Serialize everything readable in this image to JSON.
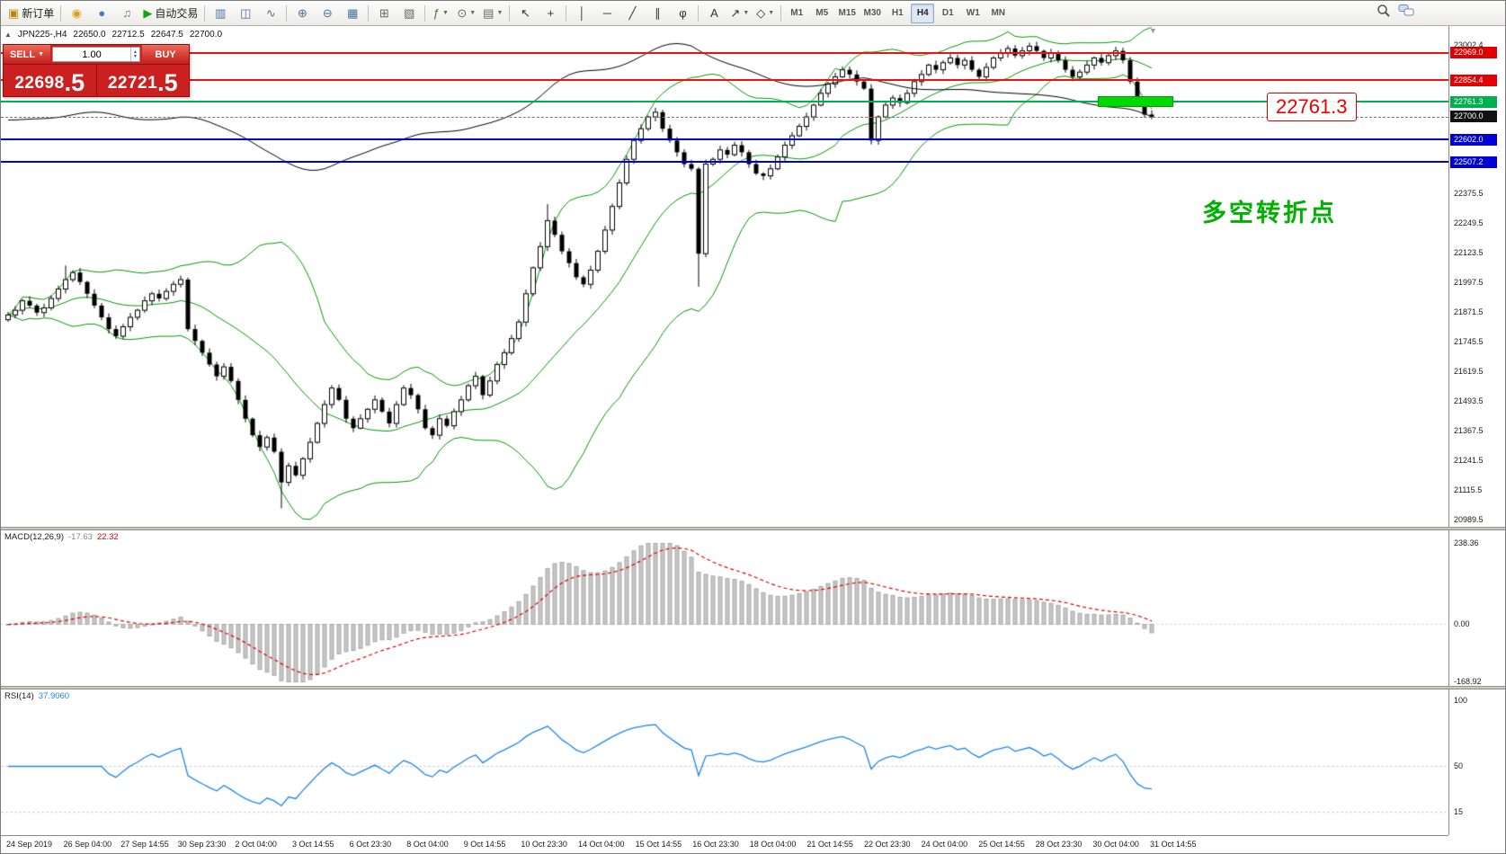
{
  "toolbar": {
    "groups": [
      [
        {
          "name": "new-order-button",
          "glyph": "▣",
          "color": "#b8860b",
          "label": "新订单"
        }
      ],
      [
        {
          "name": "gold-coins-icon",
          "glyph": "◉",
          "color": "#d4a017"
        },
        {
          "name": "profile-icon",
          "glyph": "●",
          "color": "#4a7ebb"
        },
        {
          "name": "signals-icon",
          "glyph": "♫",
          "color": "#777777"
        },
        {
          "name": "auto-trading-button",
          "glyph": "▶",
          "color": "#18a018",
          "label": "自动交易"
        }
      ],
      [
        {
          "name": "bar-chart-icon",
          "glyph": "▥",
          "color": "#4a6e9e"
        },
        {
          "name": "candlestick-icon",
          "glyph": "◫",
          "color": "#4a6e9e"
        },
        {
          "name": "line-chart-icon",
          "glyph": "∿",
          "color": "#4a6e9e"
        }
      ],
      [
        {
          "name": "zoom-in-icon",
          "glyph": "⊕",
          "color": "#4a6e9e"
        },
        {
          "name": "zoom-out-icon",
          "glyph": "⊖",
          "color": "#4a6e9e"
        },
        {
          "name": "grid-icon",
          "glyph": "▦",
          "color": "#4a6e9e"
        }
      ],
      [
        {
          "name": "tile-windows-icon",
          "glyph": "⊞",
          "color": "#666666"
        },
        {
          "name": "profiles-icon",
          "glyph": "▧",
          "color": "#666666"
        }
      ],
      [
        {
          "name": "indicators-icon",
          "glyph": "ƒ",
          "color": "#2e7d32",
          "caret": true
        },
        {
          "name": "periods-icon",
          "glyph": "⊙",
          "color": "#666666",
          "caret": true
        },
        {
          "name": "templates-icon",
          "glyph": "▤",
          "color": "#666666",
          "caret": true
        }
      ],
      [
        {
          "name": "cursor-icon",
          "glyph": "↖",
          "color": "#333333"
        },
        {
          "name": "crosshair-icon",
          "glyph": "+",
          "color": "#333333"
        }
      ],
      [
        {
          "name": "vertical-line-icon",
          "glyph": "│",
          "color": "#333333"
        },
        {
          "name": "horizontal-line-icon",
          "glyph": "─",
          "color": "#333333"
        },
        {
          "name": "trendline-icon",
          "glyph": "╱",
          "color": "#333333"
        },
        {
          "name": "channel-icon",
          "glyph": "∥",
          "color": "#333333"
        },
        {
          "name": "fibonacci-icon",
          "glyph": "φ",
          "color": "#333333"
        }
      ],
      [
        {
          "name": "text-icon",
          "glyph": "A",
          "color": "#333333"
        },
        {
          "name": "arrows-icon",
          "glyph": "↗",
          "color": "#333333",
          "caret": true
        },
        {
          "name": "shapes-icon",
          "glyph": "◇",
          "color": "#333333",
          "caret": true
        }
      ]
    ],
    "timeframes": [
      {
        "label": "M1"
      },
      {
        "label": "M5"
      },
      {
        "label": "M15"
      },
      {
        "label": "M30"
      },
      {
        "label": "H1"
      },
      {
        "label": "H4",
        "active": true
      },
      {
        "label": "D1"
      },
      {
        "label": "W1"
      },
      {
        "label": "MN"
      }
    ]
  },
  "chart": {
    "title": {
      "symbol_period": "JPN225-,H4",
      "open": "22650.0",
      "high": "22712.5",
      "low": "22647.5",
      "close": "22700.0"
    },
    "trade_panel": {
      "sell_label": "SELL",
      "buy_label": "BUY",
      "volume": "1.00",
      "sell_price": "22698",
      "sell_frac": ".5",
      "buy_price": "22721",
      "buy_frac": ".5"
    },
    "hlines": [
      {
        "price": 22969.0,
        "label": "22969.0",
        "color": "#ee1111",
        "box": "#e20000",
        "thickness": 2
      },
      {
        "price": 22854.4,
        "label": "22854.4",
        "color": "#ee1111",
        "box": "#e20000",
        "thickness": 2
      },
      {
        "price": 22761.3,
        "label": "22761.3",
        "color": "#00b050",
        "box": "#00b050",
        "thickness": 2
      },
      {
        "price": 22602.0,
        "label": "22602.0",
        "color": "#0000d8",
        "box": "#0000d8",
        "thickness": 2
      },
      {
        "price": 22507.2,
        "label": "22507.2",
        "color": "#0000d8",
        "box": "#0000d8",
        "thickness": 2
      }
    ],
    "current_price": {
      "price": 22700.0,
      "label": "22700.0",
      "box": "#111111"
    },
    "price_axis_ticks": [
      "23002.4",
      "22375.5",
      "22249.5",
      "22123.5",
      "21997.5",
      "21871.5",
      "21745.5",
      "21619.5",
      "21493.5",
      "21367.5",
      "21241.5",
      "21115.5",
      "20989.5"
    ],
    "annotations": {
      "highlight": {
        "price": 22761.3,
        "color": "#00d800"
      },
      "callout": {
        "text": "22761.3",
        "color": "#ee0000"
      },
      "note": {
        "text": "多空转折点",
        "color": "#00b000"
      }
    }
  },
  "chart_data": {
    "type": "candlestick",
    "symbol": "JPN225-",
    "timeframe": "H4",
    "ylim": [
      20975,
      23030
    ],
    "closes": [
      21860,
      21880,
      21920,
      21900,
      21870,
      21890,
      21930,
      21970,
      22010,
      22040,
      22000,
      21950,
      21900,
      21850,
      21800,
      21770,
      21810,
      21850,
      21880,
      21920,
      21950,
      21930,
      21960,
      21990,
      22010,
      21800,
      21750,
      21700,
      21650,
      21600,
      21640,
      21580,
      21500,
      21420,
      21350,
      21300,
      21340,
      21280,
      21150,
      21220,
      21180,
      21250,
      21320,
      21400,
      21480,
      21550,
      21500,
      21420,
      21380,
      21420,
      21460,
      21500,
      21450,
      21400,
      21480,
      21550,
      21520,
      21460,
      21380,
      21350,
      21420,
      21390,
      21450,
      21500,
      21560,
      21600,
      21520,
      21580,
      21650,
      21700,
      21760,
      21830,
      21950,
      22060,
      22150,
      22260,
      22200,
      22130,
      22080,
      22020,
      21990,
      22050,
      22130,
      22220,
      22320,
      22420,
      22520,
      22600,
      22650,
      22700,
      22720,
      22650,
      22600,
      22550,
      22500,
      22480,
      22120,
      22500,
      22520,
      22560,
      22540,
      22580,
      22550,
      22500,
      22460,
      22450,
      22480,
      22530,
      22580,
      22620,
      22660,
      22700,
      22750,
      22800,
      22840,
      22870,
      22900,
      22880,
      22850,
      22820,
      22600,
      22700,
      22750,
      22780,
      22760,
      22800,
      22850,
      22880,
      22920,
      22900,
      22930,
      22950,
      22920,
      22940,
      22900,
      22870,
      22910,
      22950,
      22970,
      22990,
      22960,
      22980,
      23000,
      22980,
      22950,
      22970,
      22940,
      22900,
      22870,
      22890,
      22920,
      22950,
      22930,
      22960,
      22980,
      22940,
      22850,
      22760,
      22710,
      22700
    ],
    "wick_overrides": {
      "8": {
        "high": 22070
      },
      "38": {
        "low": 21040
      },
      "75": {
        "high": 22330
      },
      "96": {
        "low": 21980
      },
      "142": {
        "high": 23015
      }
    },
    "bollinger": {
      "period": 20,
      "deviation": 2,
      "color": "#009900"
    },
    "x_labels": [
      "24 Sep 2019",
      "26 Sep 04:00",
      "27 Sep 14:55",
      "30 Sep 23:30",
      "2 Oct 04:00",
      "3 Oct 14:55",
      "6 Oct 23:30",
      "8 Oct 04:00",
      "9 Oct 14:55",
      "10 Oct 23:30",
      "14 Oct 04:00",
      "15 Oct 14:55",
      "16 Oct 23:30",
      "18 Oct 04:00",
      "21 Oct 14:55",
      "22 Oct 23:30",
      "24 Oct 04:00",
      "25 Oct 14:55",
      "28 Oct 23:30",
      "30 Oct 04:00",
      "31 Oct 14:55"
    ],
    "macd": {
      "label": "MACD(12,26,9)",
      "main_value": "-17.63",
      "signal_value": "22.32",
      "fast": 12,
      "slow": 26,
      "signal": 9,
      "scale_ticks": [
        238.36,
        0,
        -168.92
      ],
      "scale_labels": [
        "238.36",
        "0.00",
        "-168.92"
      ],
      "histogram_color": "#c6c6c6",
      "histogram_border": "#a8a8a8",
      "signal_color": "#e00000"
    },
    "rsi": {
      "label": "RSI(14)",
      "value": "37.9060",
      "period": 14,
      "color": "#1c86ee",
      "scale_labels": [
        {
          "v": 100,
          "t": "100"
        },
        {
          "v": 50,
          "t": "50"
        },
        {
          "v": 15,
          "t": "15"
        }
      ],
      "levels": [
        50,
        15
      ]
    }
  }
}
